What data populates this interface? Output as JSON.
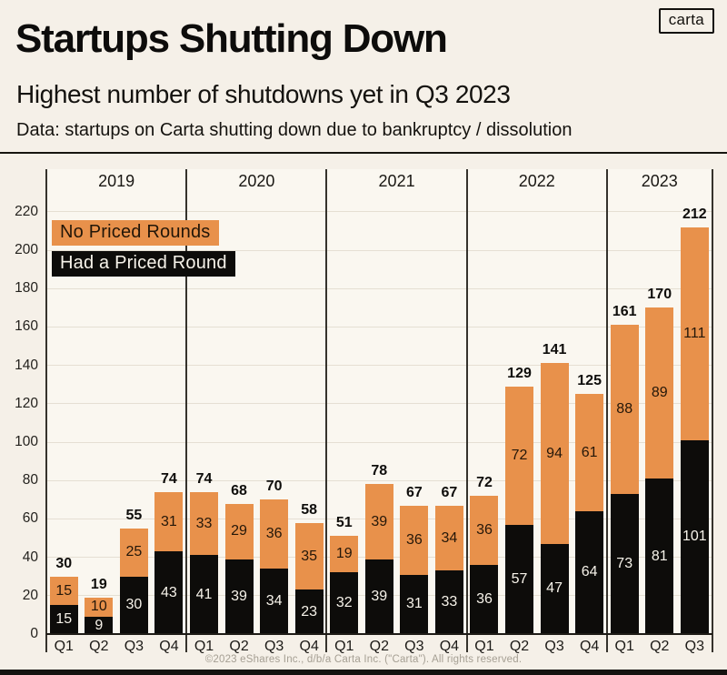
{
  "header": {
    "title": "Startups Shutting Down",
    "subtitle": "Highest number of shutdowns yet in Q3 2023",
    "data_note": "Data: startups on Carta shutting down due to bankruptcy / dissolution",
    "logo": "carta"
  },
  "legend": {
    "no_priced": "No Priced Rounds",
    "priced": "Had a Priced Round"
  },
  "footer": {
    "copyright": "©2023 eShares Inc., d/b/a Carta Inc. (\"Carta\"). All rights reserved."
  },
  "colors": {
    "background": "#F5F0E8",
    "plot_bg": "#FAF7F0",
    "orange": "#E8914B",
    "bar_black": "#0D0C0A",
    "gridline": "#E5DFD3",
    "separator_line": "#35322C",
    "baseline": "#1E1B16",
    "text_dark": "#0E0D0B",
    "label_on_orange": "#241709",
    "label_on_black": "#F7F3EA",
    "footer_text": "#A59F93"
  },
  "chart_data": {
    "type": "bar",
    "stacked": true,
    "title": "Startups Shutting Down",
    "xlabel": "",
    "ylabel": "",
    "ylim": [
      0,
      232
    ],
    "yticks": [
      0,
      20,
      40,
      60,
      80,
      100,
      120,
      140,
      160,
      180,
      200,
      220
    ],
    "grid": "horizontal",
    "legend_position": "top-left",
    "years": [
      {
        "label": "2019",
        "quarters": [
          "Q1",
          "Q2",
          "Q3",
          "Q4"
        ]
      },
      {
        "label": "2020",
        "quarters": [
          "Q1",
          "Q2",
          "Q3",
          "Q4"
        ]
      },
      {
        "label": "2021",
        "quarters": [
          "Q1",
          "Q2",
          "Q3",
          "Q4"
        ]
      },
      {
        "label": "2022",
        "quarters": [
          "Q1",
          "Q2",
          "Q3",
          "Q4"
        ]
      },
      {
        "label": "2023",
        "quarters": [
          "Q1",
          "Q2",
          "Q3"
        ]
      }
    ],
    "categories": [
      "2019 Q1",
      "2019 Q2",
      "2019 Q3",
      "2019 Q4",
      "2020 Q1",
      "2020 Q2",
      "2020 Q3",
      "2020 Q4",
      "2021 Q1",
      "2021 Q2",
      "2021 Q3",
      "2021 Q4",
      "2022 Q1",
      "2022 Q2",
      "2022 Q3",
      "2022 Q4",
      "2023 Q1",
      "2023 Q2",
      "2023 Q3"
    ],
    "series": [
      {
        "name": "Had a Priced Round",
        "color": "#0D0C0A",
        "values": [
          15,
          9,
          30,
          43,
          41,
          39,
          34,
          23,
          32,
          39,
          31,
          33,
          36,
          57,
          47,
          64,
          73,
          81,
          101
        ]
      },
      {
        "name": "No Priced Rounds",
        "color": "#E8914B",
        "values": [
          15,
          10,
          25,
          31,
          33,
          29,
          36,
          35,
          19,
          39,
          36,
          34,
          36,
          72,
          94,
          61,
          88,
          89,
          111
        ]
      }
    ],
    "totals": [
      30,
      19,
      55,
      74,
      74,
      68,
      70,
      58,
      51,
      78,
      67,
      67,
      72,
      129,
      141,
      125,
      161,
      170,
      212
    ]
  }
}
